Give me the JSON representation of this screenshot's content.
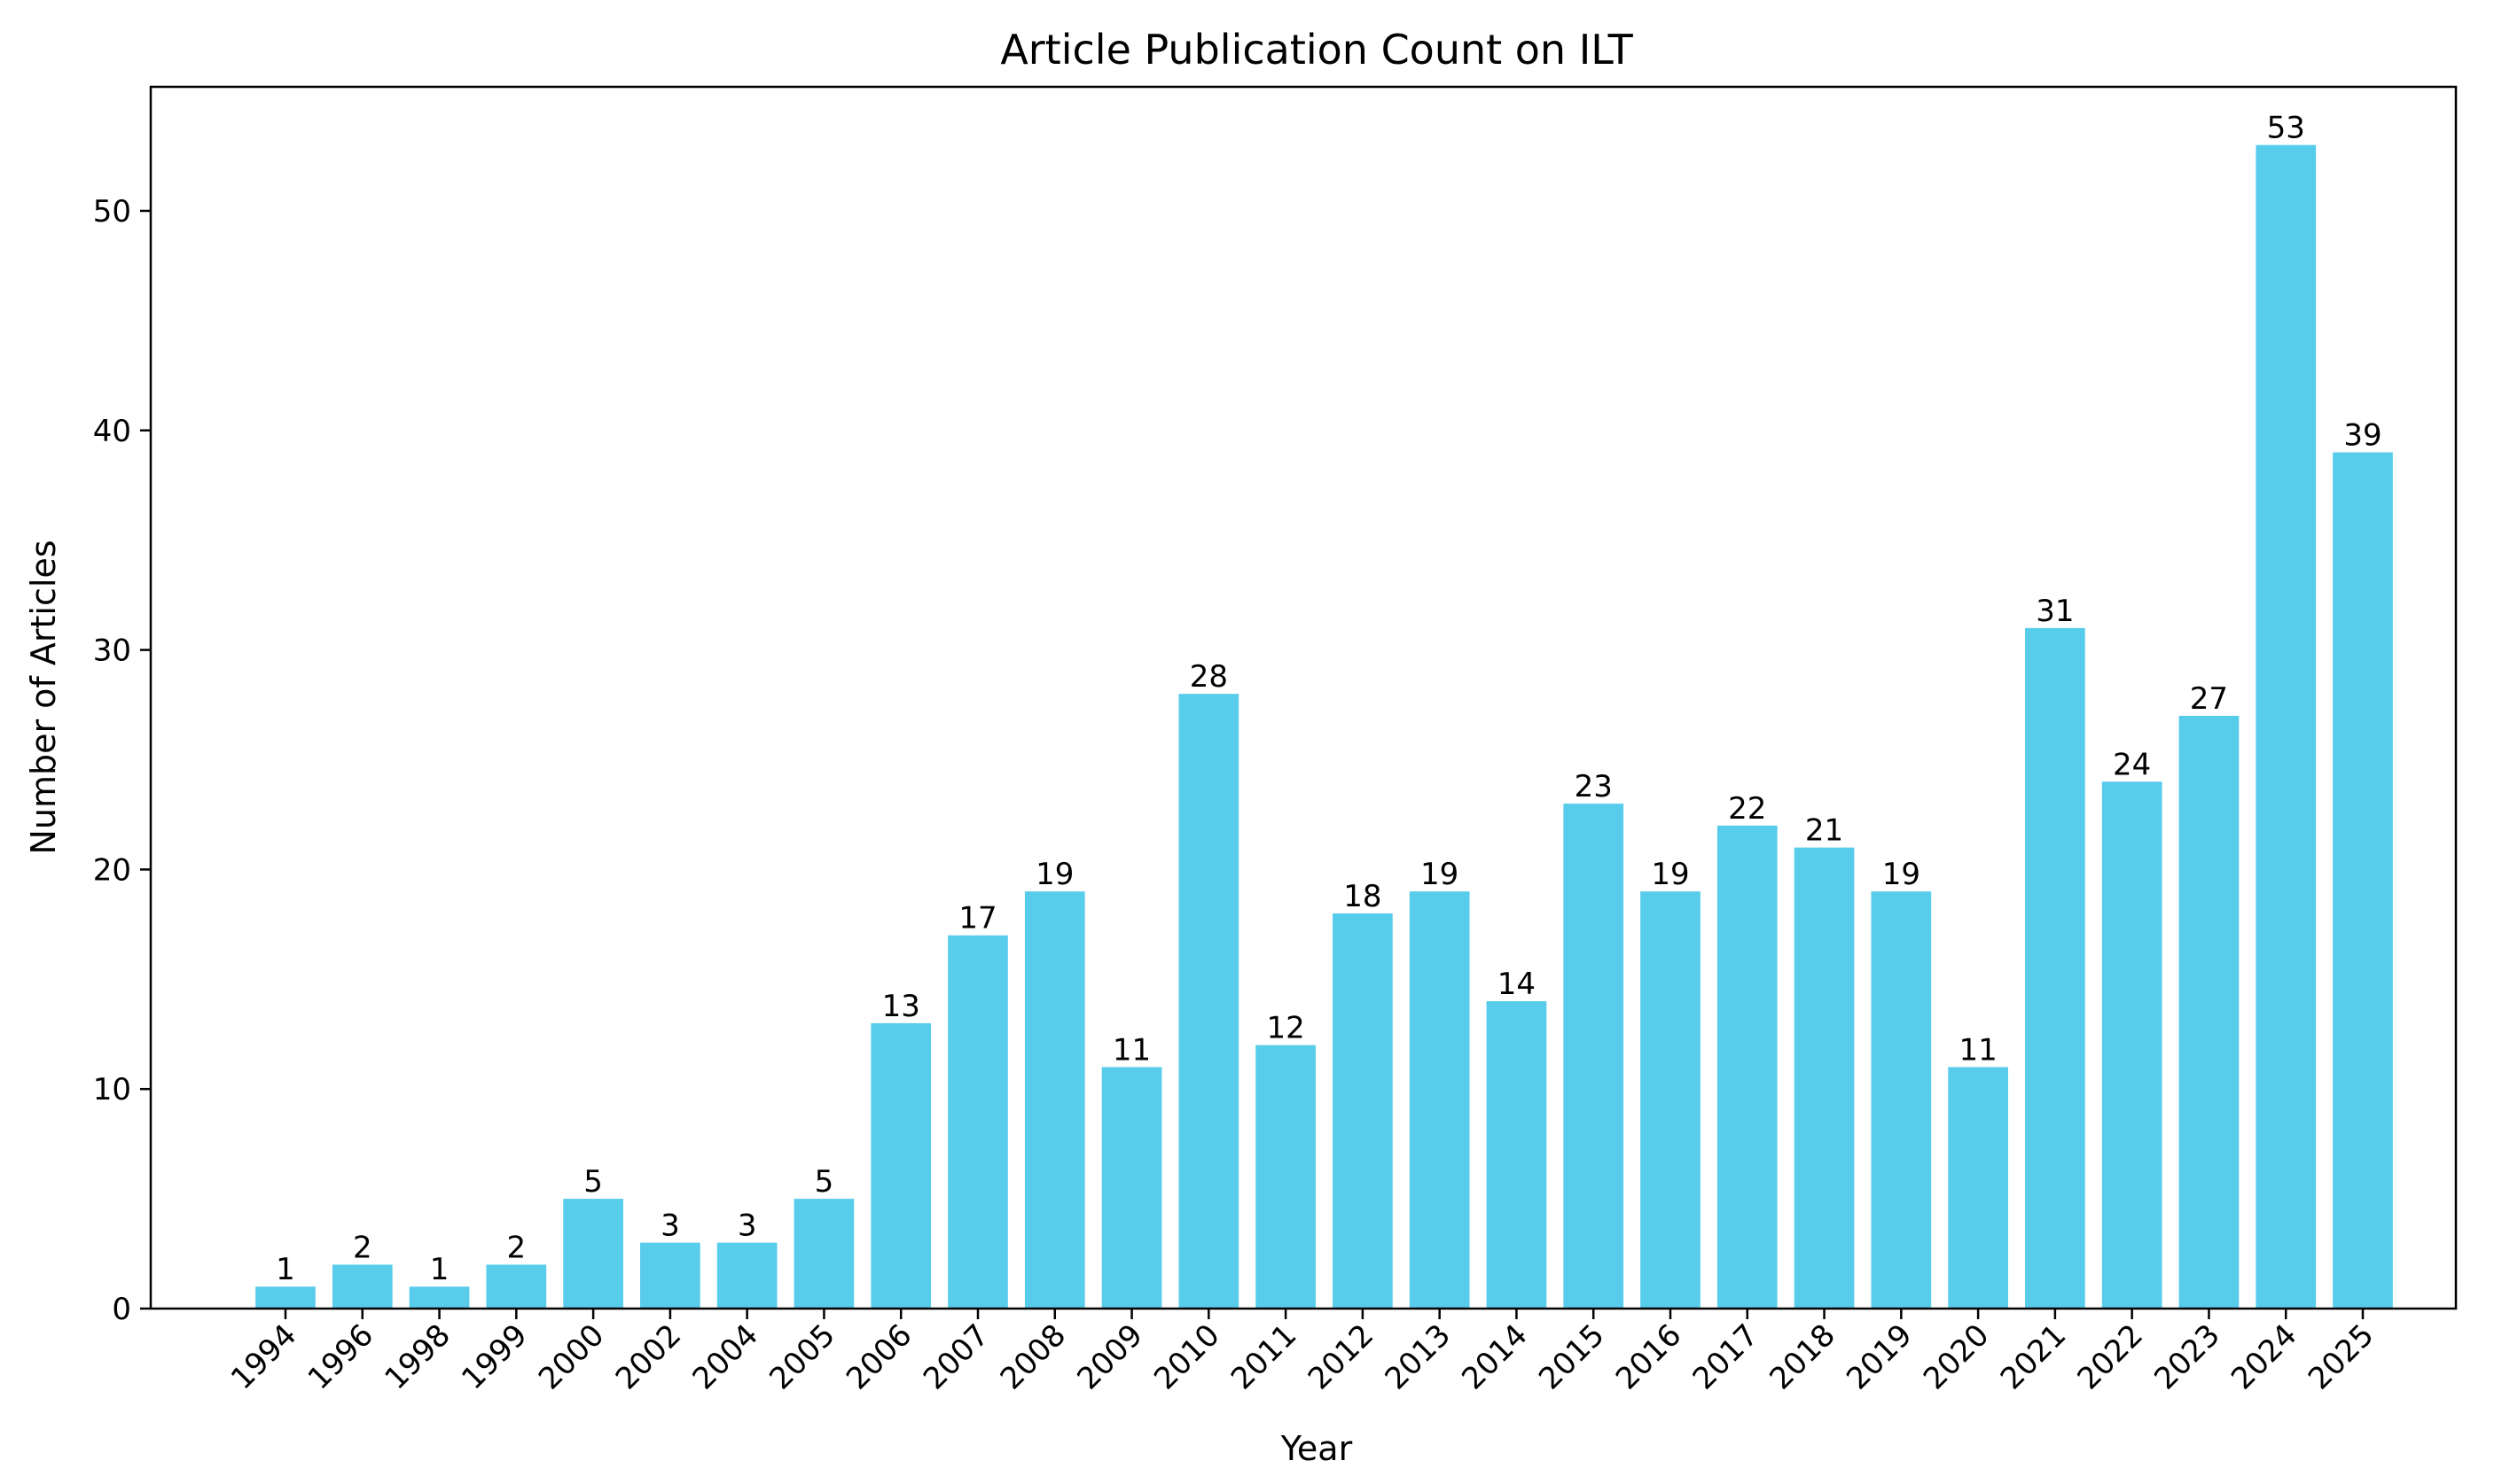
{
  "chart_data": {
    "type": "bar",
    "title": "Article Publication Count on ILT",
    "xlabel": "Year",
    "ylabel": "Number of Articles",
    "categories": [
      "1994",
      "1996",
      "1998",
      "1999",
      "2000",
      "2002",
      "2004",
      "2005",
      "2006",
      "2007",
      "2008",
      "2009",
      "2010",
      "2011",
      "2012",
      "2013",
      "2014",
      "2015",
      "2016",
      "2017",
      "2018",
      "2019",
      "2020",
      "2021",
      "2022",
      "2023",
      "2024",
      "2025"
    ],
    "values": [
      1,
      2,
      1,
      2,
      5,
      3,
      3,
      5,
      13,
      17,
      19,
      11,
      28,
      12,
      18,
      19,
      14,
      23,
      19,
      22,
      21,
      19,
      11,
      31,
      24,
      27,
      53,
      39
    ],
    "data_labels": [
      "1",
      "2",
      "1",
      "2",
      "5",
      "3",
      "3",
      "5",
      "13",
      "17",
      "19",
      "11",
      "28",
      "12",
      "18",
      "19",
      "14",
      "23",
      "19",
      "22",
      "21",
      "19",
      "11",
      "31",
      "24",
      "27",
      "53",
      "39"
    ],
    "y_ticks": [
      0,
      10,
      20,
      30,
      40,
      50
    ],
    "y_tick_labels": [
      "0",
      "10",
      "20",
      "30",
      "40",
      "50"
    ],
    "ylim": [
      0,
      55.65
    ],
    "bar_color": "#57cceb",
    "grid": false,
    "legend": "none",
    "x_tick_rotation_deg": -45
  }
}
